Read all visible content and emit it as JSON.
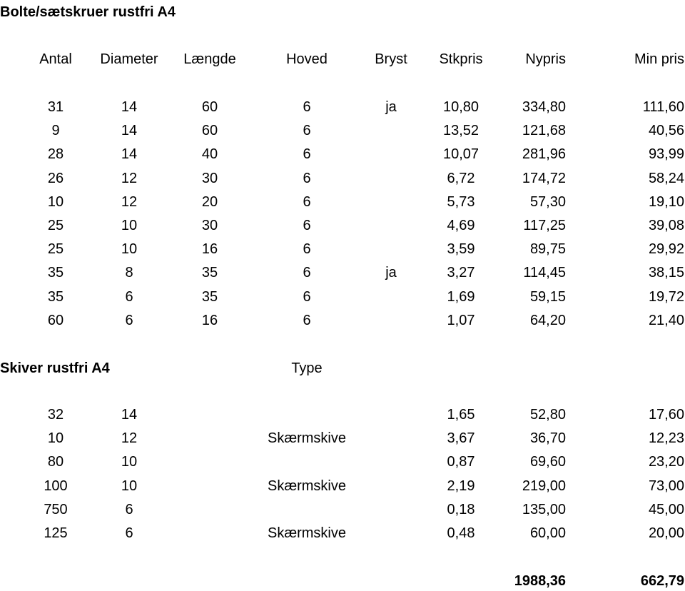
{
  "section1": {
    "title": "Bolte/sætskruer rustfri A4",
    "headers": [
      "Antal",
      "Diameter",
      "Længde",
      "Hoved",
      "Bryst",
      "Stkpris",
      "Nypris",
      "Min pris"
    ],
    "rows": [
      [
        "31",
        "14",
        "60",
        "6",
        "ja",
        "10,80",
        "334,80",
        "111,60"
      ],
      [
        "9",
        "14",
        "60",
        "6",
        null,
        "13,52",
        "121,68",
        "40,56"
      ],
      [
        "28",
        "14",
        "40",
        "6",
        null,
        "10,07",
        "281,96",
        "93,99"
      ],
      [
        "26",
        "12",
        "30",
        "6",
        null,
        "6,72",
        "174,72",
        "58,24"
      ],
      [
        "10",
        "12",
        "20",
        "6",
        null,
        "5,73",
        "57,30",
        "19,10"
      ],
      [
        "25",
        "10",
        "30",
        "6",
        null,
        "4,69",
        "117,25",
        "39,08"
      ],
      [
        "25",
        "10",
        "16",
        "6",
        null,
        "3,59",
        "89,75",
        "29,92"
      ],
      [
        "35",
        "8",
        "35",
        "6",
        "ja",
        "3,27",
        "114,45",
        "38,15"
      ],
      [
        "35",
        "6",
        "35",
        "6",
        null,
        "1,69",
        "59,15",
        "19,72"
      ],
      [
        "60",
        "6",
        "16",
        "6",
        null,
        "1,07",
        "64,20",
        "21,40"
      ]
    ]
  },
  "section2": {
    "title": "Skiver rustfri A4",
    "type_header": "Type",
    "rows": [
      [
        "32",
        "14",
        null,
        "1,65",
        "52,80",
        "17,60"
      ],
      [
        "10",
        "12",
        "Skærmskive",
        "3,67",
        "36,70",
        "12,23"
      ],
      [
        "80",
        "10",
        null,
        "0,87",
        "69,60",
        "23,20"
      ],
      [
        "100",
        "10",
        "Skærmskive",
        "2,19",
        "219,00",
        "73,00"
      ],
      [
        "750",
        "6",
        null,
        "0,18",
        "135,00",
        "45,00"
      ],
      [
        "125",
        "6",
        "Skærmskive",
        "0,48",
        "60,00",
        "20,00"
      ]
    ]
  },
  "totals": [
    "1988,36",
    "662,79"
  ]
}
